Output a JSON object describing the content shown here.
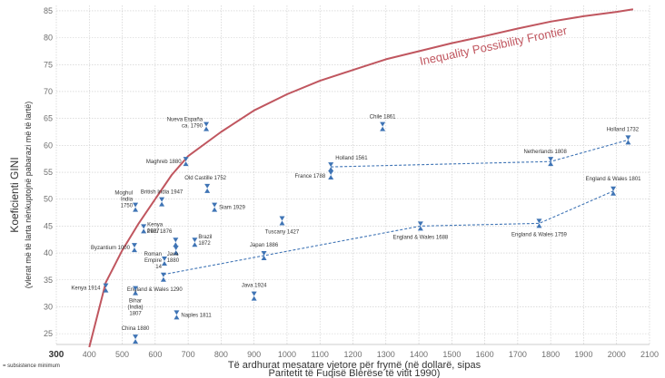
{
  "chart_data": {
    "type": "scatter",
    "ylabel": "Koeficienti GINI",
    "ylabel_sub": "(vlerat më të larta nënkuptojnë pabarazi më të lartë)",
    "xlabel": "Të ardhurat mesatare vjetore për frymë (në dollarë, sipas",
    "xlabel_line2": "Paritetit të Fuqisë Blerëse të vitit 1990)",
    "subsistence_note": "= subsistence minimum",
    "xlim": [
      300,
      2100
    ],
    "ylim": [
      23,
      86
    ],
    "x_ticks": [
      300,
      400,
      500,
      600,
      700,
      800,
      900,
      1000,
      1100,
      1200,
      1300,
      1400,
      1500,
      1600,
      1700,
      1800,
      1900,
      2000,
      2100
    ],
    "y_ticks": [
      25,
      30,
      35,
      40,
      45,
      50,
      55,
      60,
      65,
      70,
      75,
      80,
      85
    ],
    "grid": true,
    "frontier": {
      "name": "Inequality Possibility Frontier",
      "color": "#c0565f",
      "x": [
        400,
        450,
        500,
        550,
        600,
        650,
        700,
        800,
        900,
        1000,
        1100,
        1200,
        1300,
        1400,
        1500,
        1600,
        1700,
        1800,
        1900,
        2000,
        2050
      ],
      "y": [
        22.5,
        34.5,
        40.5,
        45.5,
        50,
        54.5,
        58,
        62.5,
        66.5,
        69.5,
        72,
        74,
        76,
        77.5,
        79,
        80.3,
        81.7,
        83,
        84,
        84.8,
        85.3
      ]
    },
    "points": [
      {
        "label": "Nueva España\nca. 1790",
        "x": 755,
        "y": 63.5
      },
      {
        "label": "Chile 1861",
        "x": 1290,
        "y": 63.5
      },
      {
        "label": "Holland 1732",
        "x": 2035,
        "y": 61
      },
      {
        "label": "Maghreb 1880",
        "x": 693,
        "y": 57
      },
      {
        "label": "Holland 1561",
        "x": 1133,
        "y": 56
      },
      {
        "label": "Netherlands 1808",
        "x": 1800,
        "y": 57
      },
      {
        "label": "France 1788",
        "x": 1133,
        "y": 54.5
      },
      {
        "label": "Old Castille 1752",
        "x": 758,
        "y": 52
      },
      {
        "label": "England & Wales 1801",
        "x": 1990,
        "y": 51.5
      },
      {
        "label": "British India 1947",
        "x": 620,
        "y": 49.5
      },
      {
        "label": "Siam 1929",
        "x": 780,
        "y": 48.5
      },
      {
        "label": "Moghul\nIndia\n1750",
        "x": 540,
        "y": 48.5
      },
      {
        "label": "Kenya\n1927",
        "x": 565,
        "y": 44.5
      },
      {
        "label": "Tuscany 1427",
        "x": 985,
        "y": 46
      },
      {
        "label": "England & Wales 1688",
        "x": 1405,
        "y": 45
      },
      {
        "label": "England & Wales 1759",
        "x": 1765,
        "y": 45.5
      },
      {
        "label": "Peru 1876",
        "x": 662,
        "y": 42
      },
      {
        "label": "Brazil\n1872",
        "x": 720,
        "y": 42
      },
      {
        "label": "Java\n1880",
        "x": 663,
        "y": 40.5
      },
      {
        "label": "Byzantium 1000",
        "x": 537,
        "y": 41
      },
      {
        "label": "Roman\nEmpire\n14",
        "x": 628,
        "y": 38.5
      },
      {
        "label": "Japan 1886",
        "x": 930,
        "y": 39.5
      },
      {
        "label": "England & Wales 1290",
        "x": 625,
        "y": 35.5
      },
      {
        "label": "Kenya 1914",
        "x": 450,
        "y": 33.5
      },
      {
        "label": "Bihar\n(India)\n1807",
        "x": 540,
        "y": 33
      },
      {
        "label": "Java 1924",
        "x": 900,
        "y": 32
      },
      {
        "label": "Naples 1811",
        "x": 665,
        "y": 28.5
      },
      {
        "label": "China 1880",
        "x": 540,
        "y": 24
      }
    ],
    "trend_lines": [
      {
        "x": [
          1133,
          1800,
          2035
        ],
        "y": [
          56,
          57,
          61
        ]
      },
      {
        "x": [
          625,
          930,
          1405,
          1765,
          1990
        ],
        "y": [
          36,
          39.5,
          45,
          45.5,
          51.5
        ]
      }
    ],
    "colors": {
      "frontier": "#c0565f",
      "marker": "#3f74b5",
      "grid": "#c9c9c9"
    }
  }
}
